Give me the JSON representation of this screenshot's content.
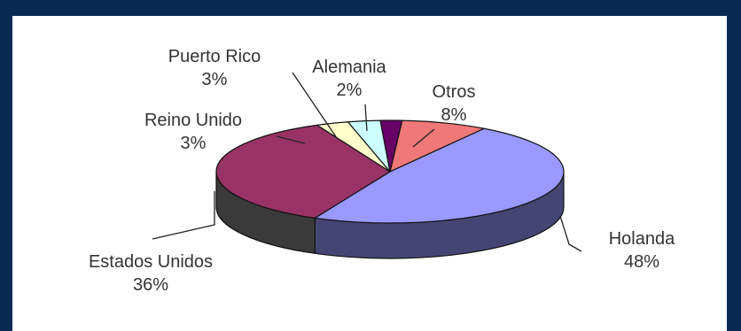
{
  "chart_data": {
    "type": "pie",
    "style": "3d",
    "title": "",
    "legend": "none",
    "slices": [
      {
        "label": "Otros",
        "value": 8,
        "pct_label": "8%",
        "color": "#f07878"
      },
      {
        "label": "Holanda",
        "value": 48,
        "pct_label": "48%",
        "color": "#9999ff"
      },
      {
        "label": "Estados Unidos",
        "value": 36,
        "pct_label": "36%",
        "color": "#993366"
      },
      {
        "label": "Reino Unido",
        "value": 3,
        "pct_label": "3%",
        "color": "#ffffcc"
      },
      {
        "label": "Puerto Rico",
        "value": 3,
        "pct_label": "3%",
        "color": "#ccffff"
      },
      {
        "label": "Alemania",
        "value": 2,
        "pct_label": "2%",
        "color": "#660066"
      }
    ]
  }
}
